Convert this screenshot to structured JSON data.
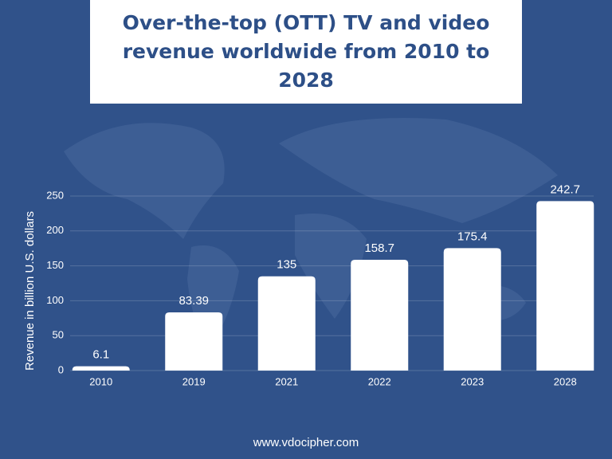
{
  "chart_data": {
    "type": "bar",
    "title": "Over-the-top (OTT) TV and video revenue worldwide from 2010 to 2028",
    "y_label": "Revenue in billion U.S. dollars",
    "categories": [
      "2010",
      "2019",
      "2021",
      "2022",
      "2023",
      "2028"
    ],
    "values": [
      6.1,
      83.39,
      135,
      158.7,
      175.4,
      242.7
    ],
    "color": "#ffffff",
    "ylim": [
      0,
      250
    ],
    "yticks": [
      0,
      50,
      100,
      150,
      200,
      250
    ],
    "grid": true,
    "footer": "www.vdocipher.com"
  }
}
